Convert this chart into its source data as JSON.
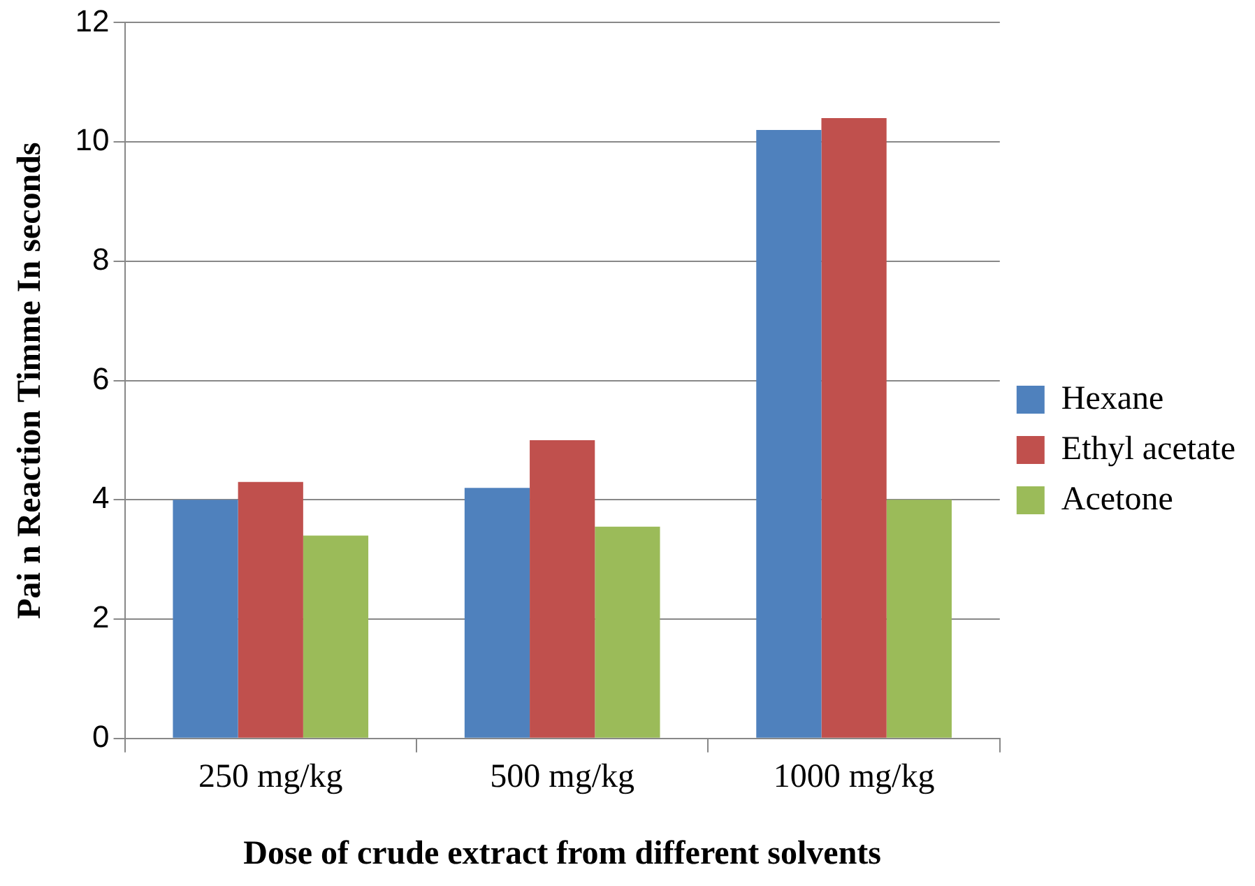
{
  "chart_data": {
    "type": "bar",
    "xlabel": "Dose of crude extract from different solvents",
    "ylabel": "Pai n Reaction Timme In seconds",
    "categories": [
      "250 mg/kg",
      "500 mg/kg",
      "1000 mg/kg"
    ],
    "series": [
      {
        "name": "Hexane",
        "color": "#4f81bd",
        "values": [
          4.0,
          4.2,
          10.2
        ]
      },
      {
        "name": "Ethyl acetate",
        "color": "#c0504d",
        "values": [
          4.3,
          5.0,
          10.4
        ]
      },
      {
        "name": "Acetone",
        "color": "#9bbb59",
        "values": [
          3.4,
          3.55,
          4.0
        ]
      }
    ],
    "ylim": [
      0,
      12
    ],
    "yticks": [
      0,
      2,
      4,
      6,
      8,
      10,
      12
    ],
    "grid": "y",
    "legend": "right"
  }
}
